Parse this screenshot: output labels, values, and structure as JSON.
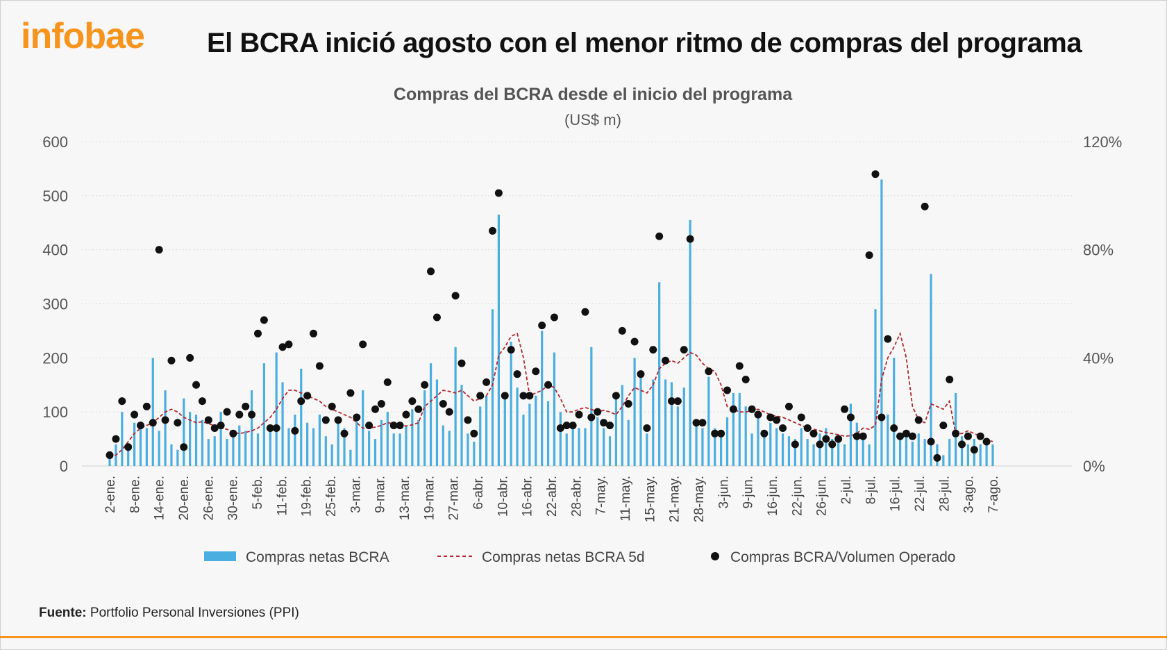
{
  "brand": {
    "logo_text": "infobae",
    "accent_color": "#f7941d"
  },
  "headline": "El BCRA inició agosto con el menor ritmo de compras del programa",
  "source": {
    "label": "Fuente:",
    "text": "Portfolio Personal Inversiones (PPI)"
  },
  "chart_data": {
    "type": "bar",
    "title": "Compras del BCRA desde el inicio del programa",
    "subtitle": "(US$ m)",
    "y_left": {
      "range": [
        0,
        600
      ],
      "ticks": [
        "0",
        "100",
        "200",
        "300",
        "400",
        "500",
        "600"
      ]
    },
    "y_right": {
      "range": [
        0,
        120
      ],
      "ticks": [
        "0%",
        "40%",
        "80%",
        "120%"
      ]
    },
    "grid": true,
    "legend_position": "bottom",
    "x_tick_labels": [
      "2-ene.",
      "8-ene.",
      "14-ene.",
      "20-ene.",
      "26-ene.",
      "30-ene.",
      "5-feb.",
      "11-feb.",
      "19-feb.",
      "25-feb.",
      "3-mar.",
      "9-mar.",
      "13-mar.",
      "19-mar.",
      "27-mar.",
      "6-abr.",
      "10-abr.",
      "16-abr.",
      "22-abr.",
      "28-abr.",
      "7-may.",
      "11-may.",
      "15-may.",
      "21-may.",
      "28-may.",
      "3-jun.",
      "9-jun.",
      "16-jun.",
      "22-jun.",
      "26-jun.",
      "2-jul.",
      "8-jul.",
      "16-jul.",
      "22-jul.",
      "28-jul.",
      "3-ago.",
      "7-ago."
    ],
    "series": [
      {
        "name": "Compras netas BCRA",
        "type": "bar",
        "color": "#4aaee0",
        "values": [
          20,
          40,
          100,
          30,
          80,
          75,
          70,
          200,
          65,
          140,
          40,
          30,
          125,
          100,
          95,
          85,
          50,
          55,
          100,
          50,
          60,
          75,
          65,
          140,
          60,
          190,
          70,
          210,
          155,
          70,
          95,
          180,
          80,
          70,
          95,
          55,
          40,
          85,
          70,
          30,
          90,
          140,
          65,
          50,
          85,
          100,
          60,
          60,
          75,
          105,
          85,
          140,
          190,
          160,
          75,
          65,
          220,
          150,
          60,
          45,
          110,
          130,
          290,
          465,
          125,
          230,
          145,
          95,
          115,
          130,
          250,
          120,
          210,
          100,
          60,
          80,
          70,
          70,
          220,
          90,
          70,
          55,
          125,
          150,
          85,
          200,
          170,
          60,
          160,
          340,
          160,
          155,
          110,
          145,
          455,
          75,
          70,
          165,
          70,
          55,
          90,
          135,
          135,
          110,
          60,
          90,
          55,
          80,
          70,
          60,
          55,
          50,
          70,
          50,
          40,
          60,
          70,
          50,
          50,
          40,
          115,
          80,
          50,
          40,
          290,
          530,
          95,
          200,
          60,
          55,
          45,
          60,
          50,
          355,
          40,
          20,
          50,
          135,
          55,
          40,
          50,
          40,
          50,
          40
        ]
      },
      {
        "name": "Compras netas BCRA 5d",
        "type": "line",
        "style": "dashed",
        "color": "#b3282d",
        "values": [
          15,
          20,
          30,
          45,
          60,
          70,
          75,
          80,
          90,
          100,
          105,
          100,
          90,
          85,
          80,
          82,
          78,
          75,
          70,
          68,
          62,
          60,
          62,
          65,
          70,
          80,
          90,
          105,
          125,
          140,
          140,
          135,
          130,
          125,
          120,
          110,
          105,
          100,
          95,
          90,
          80,
          70,
          70,
          72,
          75,
          80,
          78,
          76,
          74,
          76,
          80,
          110,
          120,
          130,
          140,
          138,
          135,
          140,
          130,
          120,
          125,
          130,
          150,
          205,
          220,
          240,
          245,
          200,
          130,
          135,
          140,
          150,
          145,
          125,
          100,
          100,
          105,
          108,
          105,
          100,
          103,
          100,
          95,
          110,
          130,
          145,
          140,
          135,
          150,
          180,
          190,
          195,
          190,
          200,
          210,
          205,
          190,
          180,
          175,
          150,
          110,
          105,
          100,
          100,
          102,
          105,
          100,
          95,
          92,
          90,
          85,
          80,
          75,
          70,
          68,
          65,
          62,
          60,
          58,
          55,
          56,
          60,
          70,
          68,
          75,
          160,
          200,
          220,
          245,
          200,
          110,
          85,
          80,
          115,
          110,
          105,
          120,
          60,
          60,
          65,
          60,
          55,
          50,
          45
        ]
      },
      {
        "name": "Compras BCRA/Volumen Operado",
        "type": "scatter",
        "color": "#111111",
        "axis": "right",
        "unit": "%",
        "values": [
          4,
          10,
          24,
          7,
          19,
          15,
          22,
          16,
          80,
          17,
          39,
          16,
          7,
          40,
          30,
          24,
          17,
          14,
          15,
          20,
          12,
          19,
          22,
          19,
          49,
          54,
          14,
          14,
          44,
          45,
          13,
          24,
          26,
          49,
          37,
          17,
          22,
          17,
          12,
          27,
          18,
          45,
          15,
          21,
          23,
          31,
          15,
          15,
          19,
          24,
          21,
          30,
          72,
          55,
          23,
          20,
          63,
          38,
          17,
          12,
          26,
          31,
          87,
          101,
          26,
          43,
          34,
          26,
          26,
          35,
          52,
          30,
          55,
          14,
          15,
          15,
          19,
          57,
          18,
          20,
          16,
          15,
          26,
          50,
          23,
          46,
          34,
          14,
          43,
          85,
          39,
          24,
          24,
          43,
          84,
          16,
          16,
          35,
          12,
          12,
          28,
          21,
          37,
          32,
          21,
          19,
          12,
          18,
          17,
          14,
          22,
          8,
          18,
          14,
          12,
          8,
          10,
          8,
          10,
          21,
          18,
          11,
          11,
          78,
          108,
          18,
          47,
          14,
          11,
          12,
          11,
          17,
          96,
          9,
          3,
          15,
          32,
          12,
          8,
          11,
          6,
          11,
          9
        ]
      }
    ]
  }
}
